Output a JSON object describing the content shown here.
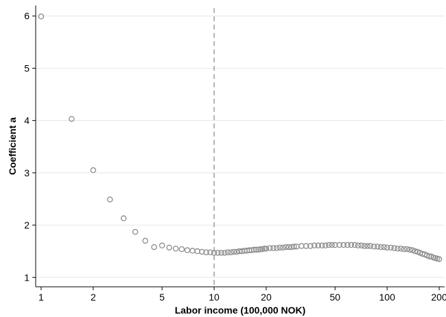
{
  "chart_data": {
    "type": "scatter",
    "xlabel": "Labor income (100,000 NOK)",
    "ylabel": "Coefficient a",
    "x_scale": "log",
    "xlim": [
      0.93,
      215
    ],
    "ylim": [
      0.82,
      6.2
    ],
    "x_ticks": [
      1,
      2,
      5,
      10,
      20,
      50,
      100,
      200
    ],
    "x_tick_labels": [
      "1",
      "2",
      "5",
      "10",
      "20",
      "50",
      "100",
      "200"
    ],
    "y_ticks": [
      1,
      2,
      3,
      4,
      5,
      6
    ],
    "y_tick_labels": [
      "1",
      "2",
      "3",
      "4",
      "5",
      "6"
    ],
    "grid": "horizontal",
    "reference_line": {
      "x": 10,
      "style": "dashed"
    },
    "marker": {
      "shape": "hollow-circle",
      "color": "#8c8c8c"
    },
    "colors": {
      "marker": "#8c8c8c",
      "grid": "#e6e6e6",
      "axis": "#000000",
      "reference_line": "#8c8c8c"
    },
    "x": [
      1,
      1.5,
      2,
      2.5,
      3,
      3.5,
      4,
      4.5,
      5,
      5.5,
      6,
      6.5,
      7,
      7.5,
      8,
      8.5,
      9,
      9.5,
      10,
      10.5,
      11,
      11.5,
      12,
      12.5,
      13,
      13.5,
      14,
      14.5,
      15,
      15.5,
      16,
      16.5,
      17,
      17.5,
      18,
      18.5,
      19,
      19.5,
      20,
      21,
      22,
      23,
      24,
      25,
      26,
      27,
      28,
      29,
      30,
      32,
      34,
      36,
      38,
      40,
      42,
      44,
      46,
      48,
      50,
      53,
      56,
      59,
      62,
      65,
      68,
      71,
      74,
      77,
      80,
      84,
      88,
      92,
      96,
      100,
      105,
      110,
      115,
      120,
      125,
      130,
      135,
      140,
      145,
      150,
      155,
      160,
      165,
      170,
      175,
      180,
      185,
      190,
      195,
      200
    ],
    "y": [
      5.99,
      4.03,
      3.05,
      2.49,
      2.13,
      1.87,
      1.7,
      1.58,
      1.61,
      1.57,
      1.55,
      1.54,
      1.52,
      1.51,
      1.5,
      1.49,
      1.48,
      1.48,
      1.47,
      1.47,
      1.47,
      1.47,
      1.48,
      1.48,
      1.49,
      1.49,
      1.5,
      1.5,
      1.51,
      1.51,
      1.52,
      1.52,
      1.53,
      1.53,
      1.53,
      1.54,
      1.54,
      1.55,
      1.55,
      1.56,
      1.56,
      1.56,
      1.57,
      1.57,
      1.58,
      1.58,
      1.58,
      1.59,
      1.59,
      1.6,
      1.6,
      1.6,
      1.61,
      1.61,
      1.61,
      1.61,
      1.62,
      1.62,
      1.62,
      1.62,
      1.62,
      1.62,
      1.62,
      1.62,
      1.61,
      1.61,
      1.6,
      1.6,
      1.6,
      1.59,
      1.59,
      1.58,
      1.58,
      1.57,
      1.57,
      1.56,
      1.55,
      1.55,
      1.54,
      1.54,
      1.53,
      1.52,
      1.5,
      1.49,
      1.47,
      1.45,
      1.44,
      1.42,
      1.4,
      1.4,
      1.38,
      1.37,
      1.36,
      1.35
    ]
  }
}
